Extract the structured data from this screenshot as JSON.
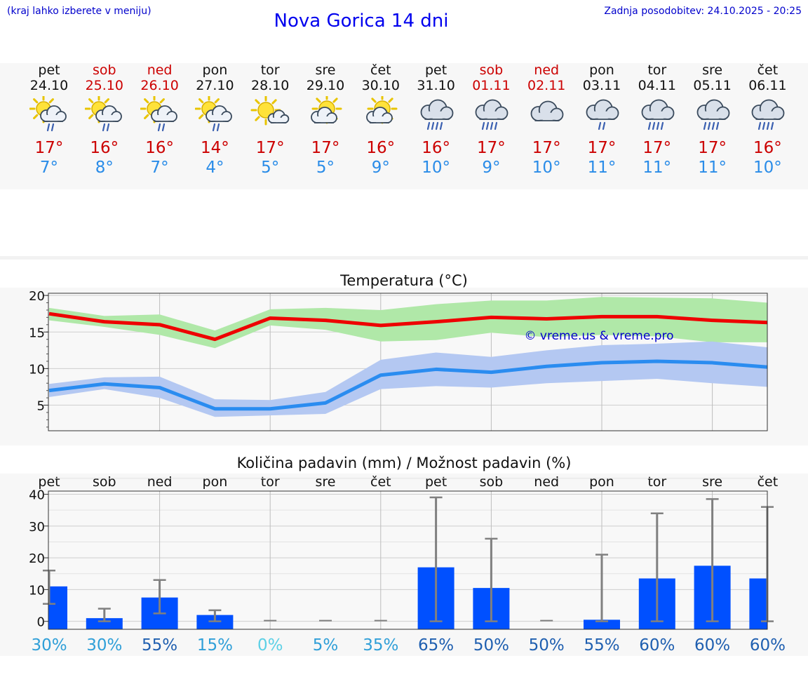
{
  "header": {
    "note": "(kraj lahko izberete v meniju)",
    "title": "Nova Gorica 14 dni",
    "updated": "Zadnja posodobitev: 24.10.2025 - 20:25"
  },
  "days": [
    {
      "name": "pet",
      "date": "24.10",
      "weekend": false,
      "icon": "sun-cloud-rain-icon",
      "max": "17°",
      "min": "7°"
    },
    {
      "name": "sob",
      "date": "25.10",
      "weekend": true,
      "icon": "sun-cloud-rain-icon",
      "max": "16°",
      "min": "8°"
    },
    {
      "name": "ned",
      "date": "26.10",
      "weekend": true,
      "icon": "sun-cloud-rain-icon",
      "max": "16°",
      "min": "7°"
    },
    {
      "name": "pon",
      "date": "27.10",
      "weekend": false,
      "icon": "sun-cloud-rain-icon",
      "max": "14°",
      "min": "4°"
    },
    {
      "name": "tor",
      "date": "28.10",
      "weekend": false,
      "icon": "sun-small-cloud-icon",
      "max": "17°",
      "min": "5°"
    },
    {
      "name": "sre",
      "date": "29.10",
      "weekend": false,
      "icon": "sun-cloud-icon",
      "max": "17°",
      "min": "5°"
    },
    {
      "name": "čet",
      "date": "30.10",
      "weekend": false,
      "icon": "sun-cloud-icon",
      "max": "16°",
      "min": "9°"
    },
    {
      "name": "pet",
      "date": "31.10",
      "weekend": false,
      "icon": "cloud-heavy-rain-icon",
      "max": "16°",
      "min": "10°"
    },
    {
      "name": "sob",
      "date": "01.11",
      "weekend": true,
      "icon": "cloud-heavy-rain-icon",
      "max": "17°",
      "min": "9°"
    },
    {
      "name": "ned",
      "date": "02.11",
      "weekend": true,
      "icon": "cloud-icon",
      "max": "17°",
      "min": "10°"
    },
    {
      "name": "pon",
      "date": "03.11",
      "weekend": false,
      "icon": "cloud-light-rain-icon",
      "max": "17°",
      "min": "11°"
    },
    {
      "name": "tor",
      "date": "04.11",
      "weekend": false,
      "icon": "cloud-heavy-rain-icon",
      "max": "17°",
      "min": "11°"
    },
    {
      "name": "sre",
      "date": "05.11",
      "weekend": false,
      "icon": "cloud-heavy-rain-icon",
      "max": "17°",
      "min": "11°"
    },
    {
      "name": "čet",
      "date": "06.11",
      "weekend": false,
      "icon": "cloud-heavy-rain-icon",
      "max": "16°",
      "min": "10°"
    }
  ],
  "colors": {
    "max_line": "#ee0000",
    "max_band": "#b0e8a8",
    "min_line": "#2a8cf0",
    "min_band": "#b4c8f2",
    "bar": "#0050ff",
    "error": "#808080",
    "weekend": "#cc0000"
  },
  "chart_data": [
    {
      "type": "line",
      "title": "Temperatura (°C)",
      "watermark": "© vreme.us & vreme.pro",
      "ylim": [
        1.5,
        20.3
      ],
      "yticks": [
        5,
        10,
        15,
        20
      ],
      "grid": true,
      "series": [
        {
          "values": [
            17.5,
            16.4,
            16.0,
            14.0,
            16.9,
            16.6,
            15.9,
            16.4,
            17.0,
            16.8,
            17.1,
            17.1,
            16.6,
            16.3
          ],
          "band_low": [
            16.6,
            15.7,
            14.6,
            12.8,
            15.9,
            15.3,
            13.7,
            13.9,
            14.9,
            14.3,
            14.6,
            14.4,
            13.6,
            13.6
          ],
          "band_high": [
            18.3,
            17.2,
            17.4,
            15.2,
            18.1,
            18.3,
            18.0,
            18.8,
            19.3,
            19.3,
            19.8,
            19.7,
            19.6,
            19.0
          ]
        },
        {
          "values": [
            7.0,
            7.9,
            7.4,
            4.5,
            4.5,
            5.3,
            9.1,
            9.9,
            9.5,
            10.3,
            10.8,
            11.0,
            10.8,
            10.2
          ],
          "band_low": [
            6.1,
            7.2,
            6.0,
            3.4,
            3.6,
            3.8,
            7.2,
            7.6,
            7.4,
            8.0,
            8.3,
            8.6,
            8.0,
            7.5
          ],
          "band_high": [
            7.9,
            8.8,
            8.9,
            5.8,
            5.7,
            6.8,
            11.2,
            12.2,
            11.6,
            12.5,
            13.2,
            13.4,
            13.7,
            12.9
          ]
        }
      ]
    },
    {
      "type": "bar",
      "title": "Količina padavin (mm) / Možnost padavin (%)",
      "categories": [
        "pet",
        "sob",
        "ned",
        "pon",
        "tor",
        "sre",
        "čet",
        "pet",
        "sob",
        "ned",
        "pon",
        "tor",
        "sre",
        "čet"
      ],
      "ylim": [
        -2.5,
        41
      ],
      "yticks": [
        0,
        10,
        20,
        30,
        40
      ],
      "grid": true,
      "values": [
        11,
        1,
        7.5,
        2,
        0,
        0,
        0,
        17,
        10.5,
        0,
        0.5,
        13.5,
        17.5,
        13.5
      ],
      "err_low": [
        5.5,
        0,
        2.5,
        0,
        0,
        0,
        0,
        0,
        0,
        0,
        0,
        0,
        0,
        0
      ],
      "err_high": [
        16,
        4,
        13,
        3.5,
        0,
        0,
        0,
        39,
        26,
        0,
        21,
        34,
        38.5,
        36
      ],
      "probability": [
        "30%",
        "30%",
        "55%",
        "15%",
        "0%",
        "5%",
        "35%",
        "65%",
        "50%",
        "50%",
        "55%",
        "60%",
        "60%",
        "60%"
      ]
    }
  ]
}
